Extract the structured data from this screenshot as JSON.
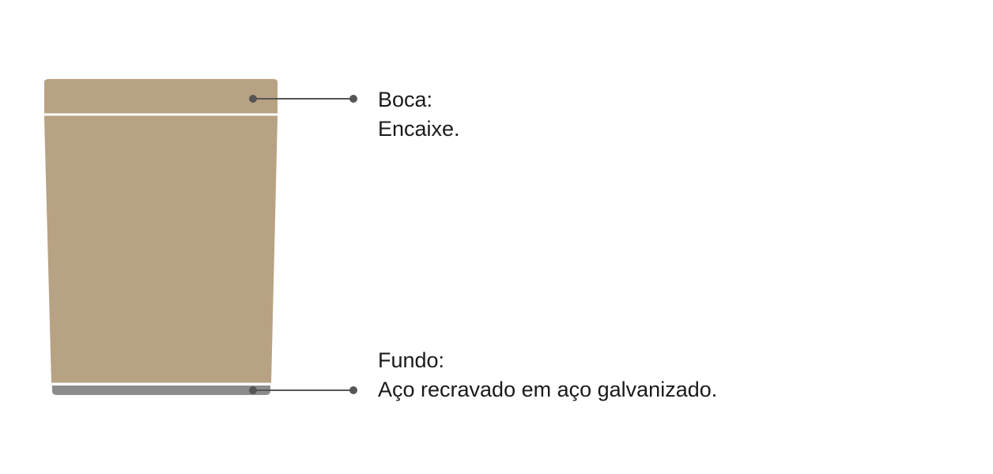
{
  "callouts": {
    "top": {
      "title": "Boca:",
      "description": "Encaixe."
    },
    "bottom": {
      "title": "Fundo:",
      "description": "Aço recravado em aço galvanizado."
    }
  },
  "colors": {
    "body": "#b8a284",
    "base": "#8c8c8c",
    "separator": "#ffffff",
    "leader": "#555555"
  }
}
